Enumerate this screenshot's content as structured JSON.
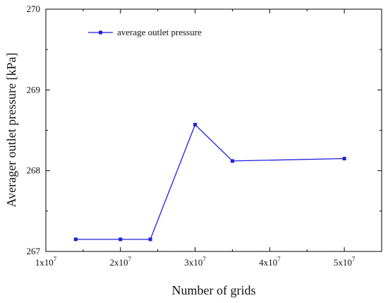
{
  "chart_data": {
    "type": "line",
    "title": "",
    "xlabel": "Number of grids",
    "ylabel": "Averager outlet pressure [kPa]",
    "xlim": [
      10000000,
      55000000
    ],
    "ylim": [
      267,
      270
    ],
    "x_ticks": [
      {
        "value": 10000000,
        "mantissa": "1x10",
        "exp": "7"
      },
      {
        "value": 20000000,
        "mantissa": "2x10",
        "exp": "7"
      },
      {
        "value": 30000000,
        "mantissa": "3x10",
        "exp": "7"
      },
      {
        "value": 40000000,
        "mantissa": "4x10",
        "exp": "7"
      },
      {
        "value": 50000000,
        "mantissa": "5x10",
        "exp": "7"
      }
    ],
    "y_ticks": [
      267,
      268,
      269,
      270
    ],
    "grid": false,
    "legend_position": "top-left",
    "series": [
      {
        "name": "average outlet pressure",
        "color": "#1f1fe0",
        "marker": "square",
        "x": [
          14000000,
          20000000,
          24000000,
          30000000,
          35000000,
          50000000
        ],
        "y": [
          267.15,
          267.15,
          267.15,
          268.57,
          268.12,
          268.15
        ]
      }
    ]
  }
}
